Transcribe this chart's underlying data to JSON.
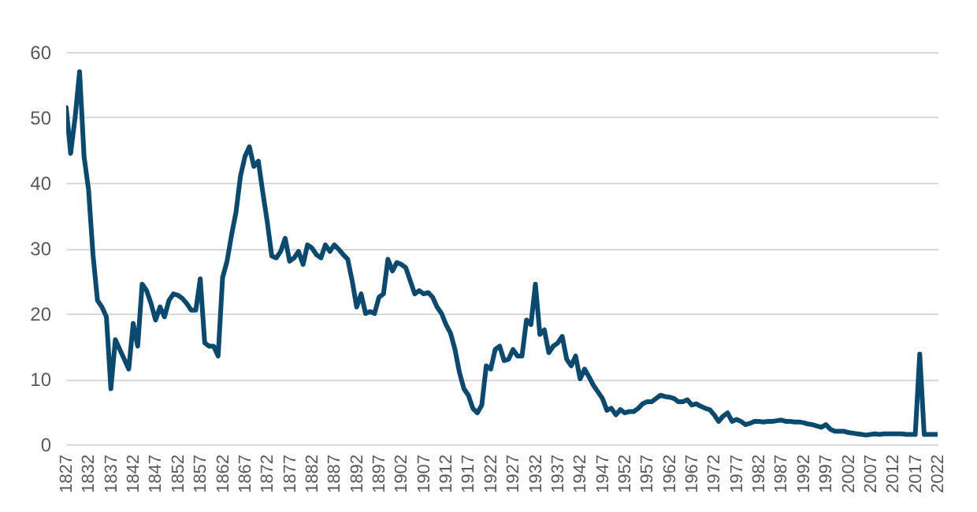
{
  "chart_data": {
    "type": "line",
    "x": [
      1827,
      1828,
      1829,
      1830,
      1831,
      1832,
      1833,
      1834,
      1835,
      1836,
      1837,
      1838,
      1839,
      1840,
      1841,
      1842,
      1843,
      1844,
      1845,
      1846,
      1847,
      1848,
      1849,
      1850,
      1851,
      1852,
      1853,
      1854,
      1855,
      1856,
      1857,
      1858,
      1859,
      1860,
      1861,
      1862,
      1863,
      1864,
      1865,
      1866,
      1867,
      1868,
      1869,
      1870,
      1871,
      1872,
      1873,
      1874,
      1875,
      1876,
      1877,
      1878,
      1879,
      1880,
      1881,
      1882,
      1883,
      1884,
      1885,
      1886,
      1887,
      1888,
      1889,
      1890,
      1891,
      1892,
      1893,
      1894,
      1895,
      1896,
      1897,
      1898,
      1899,
      1900,
      1901,
      1902,
      1903,
      1904,
      1905,
      1906,
      1907,
      1908,
      1909,
      1910,
      1911,
      1912,
      1913,
      1914,
      1915,
      1916,
      1917,
      1918,
      1919,
      1920,
      1921,
      1922,
      1923,
      1924,
      1925,
      1926,
      1927,
      1928,
      1929,
      1930,
      1931,
      1932,
      1933,
      1934,
      1935,
      1936,
      1937,
      1938,
      1939,
      1940,
      1941,
      1942,
      1943,
      1944,
      1945,
      1946,
      1947,
      1948,
      1949,
      1950,
      1951,
      1952,
      1953,
      1954,
      1955,
      1956,
      1957,
      1958,
      1959,
      1960,
      1961,
      1962,
      1963,
      1964,
      1965,
      1966,
      1967,
      1968,
      1969,
      1970,
      1971,
      1972,
      1973,
      1974,
      1975,
      1976,
      1977,
      1978,
      1979,
      1980,
      1981,
      1982,
      1983,
      1984,
      1985,
      1986,
      1987,
      1988,
      1989,
      1990,
      1991,
      1992,
      1993,
      1994,
      1995,
      1996,
      1997,
      1998,
      1999,
      2000,
      2001,
      2002,
      2003,
      2004,
      2005,
      2006,
      2007,
      2008,
      2009,
      2010,
      2011,
      2012,
      2013,
      2014,
      2015,
      2016,
      2017,
      2018,
      2019,
      2020,
      2021,
      2022
    ],
    "series": [
      {
        "color": "#0b4a70",
        "values": [
          51.5,
          44.5,
          50,
          57,
          44,
          39,
          29,
          22,
          21,
          19.5,
          8.5,
          16,
          14.5,
          13,
          11.5,
          18.5,
          15,
          24.5,
          23.5,
          21.5,
          19,
          21,
          19.5,
          22,
          23,
          22.8,
          22.3,
          21.5,
          20.5,
          20.5,
          25.3,
          15.5,
          15,
          15,
          13.5,
          25.5,
          28,
          32,
          35.5,
          41,
          44,
          45.5,
          42.5,
          43.3,
          38.5,
          34,
          28.8,
          28.5,
          29.5,
          31.5,
          28,
          28.5,
          29.5,
          27.5,
          30.5,
          30,
          29,
          28.5,
          30.5,
          29.5,
          30.5,
          29.8,
          29,
          28.3,
          25,
          21,
          23,
          20,
          20.3,
          20,
          22.5,
          23,
          28.3,
          26.5,
          27.8,
          27.5,
          27,
          25,
          23,
          23.5,
          23,
          23.2,
          22.5,
          21,
          20,
          18.3,
          17,
          14.5,
          11,
          8.5,
          7.5,
          5.5,
          4.8,
          6,
          12,
          11.5,
          14.5,
          15,
          12.8,
          13,
          14.5,
          13.5,
          13.5,
          19,
          18.3,
          24.5,
          16.8,
          17.5,
          14,
          15,
          15.5,
          16.5,
          13,
          12,
          13.5,
          10,
          11.5,
          10.3,
          9,
          8,
          7,
          5.2,
          5.5,
          4.5,
          5.3,
          4.8,
          5,
          5,
          5.5,
          6.2,
          6.5,
          6.5,
          7,
          7.5,
          7.3,
          7.2,
          7,
          6.5,
          6.5,
          6.8,
          6,
          6.2,
          5.8,
          5.5,
          5.3,
          4.5,
          3.5,
          4.3,
          4.8,
          3.5,
          3.8,
          3.5,
          3,
          3.2,
          3.5,
          3.5,
          3.4,
          3.5,
          3.5,
          3.6,
          3.7,
          3.5,
          3.5,
          3.4,
          3.4,
          3.3,
          3.1,
          3,
          2.8,
          2.6,
          3,
          2.3,
          2,
          2,
          2,
          1.8,
          1.7,
          1.6,
          1.5,
          1.4,
          1.5,
          1.6,
          1.5,
          1.6,
          1.6,
          1.6,
          1.6,
          1.6,
          1.5,
          1.5,
          1.5,
          13.8,
          1.5,
          1.5,
          1.5,
          1.5
        ]
      }
    ],
    "xlim": [
      1827,
      2022
    ],
    "xticks": [
      1827,
      1832,
      1837,
      1842,
      1847,
      1852,
      1857,
      1862,
      1867,
      1872,
      1877,
      1882,
      1887,
      1892,
      1897,
      1902,
      1907,
      1912,
      1917,
      1922,
      1927,
      1932,
      1937,
      1942,
      1947,
      1952,
      1957,
      1962,
      1967,
      1972,
      1977,
      1982,
      1987,
      1992,
      1997,
      2002,
      2007,
      2012,
      2017,
      2022
    ],
    "ylim": [
      0,
      60
    ],
    "yticks": [
      0,
      10,
      20,
      30,
      40,
      50,
      60
    ],
    "grid": "y",
    "line_style": "solid",
    "marker": "none"
  }
}
